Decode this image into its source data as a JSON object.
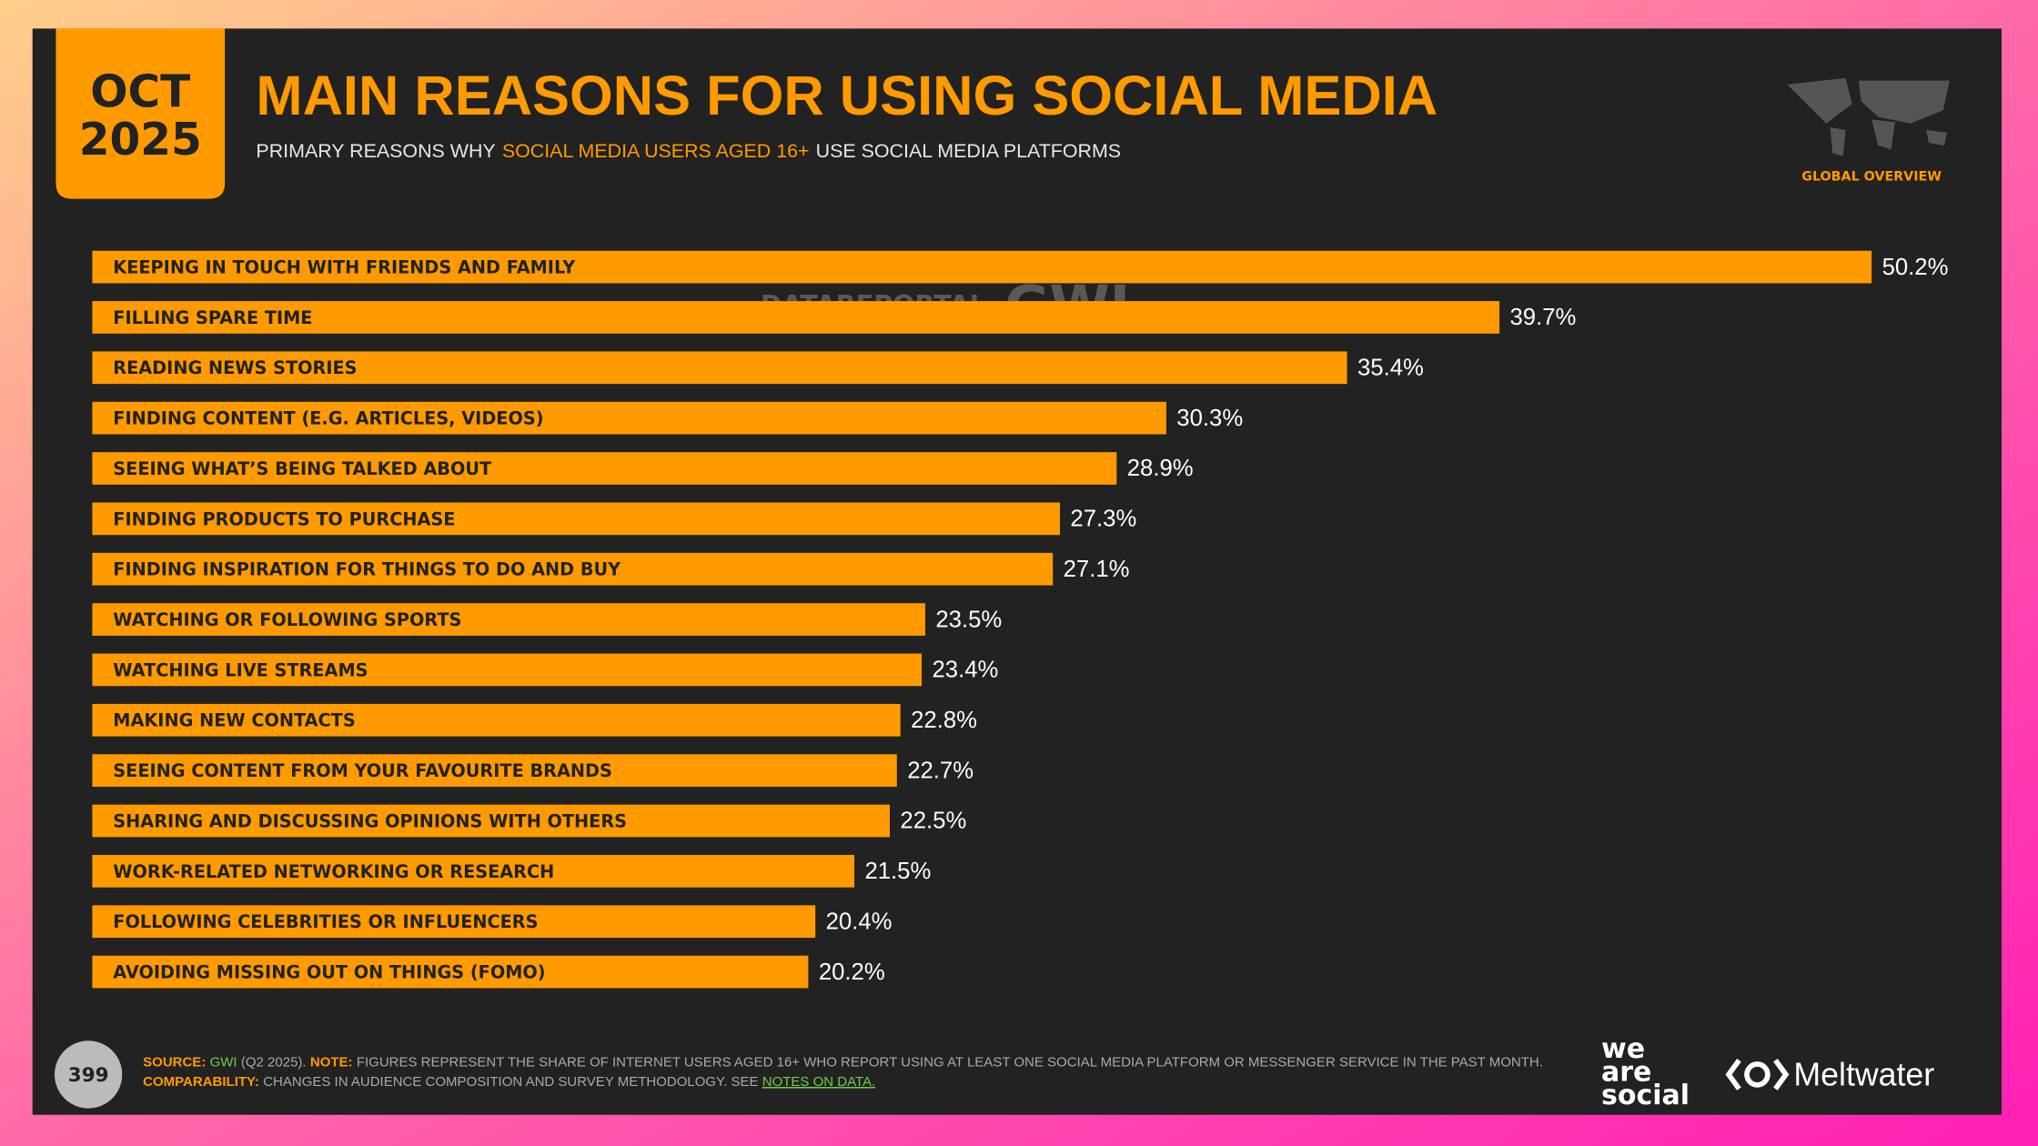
{
  "header": {
    "date_month": "OCT",
    "date_year": "2025",
    "title": "MAIN REASONS FOR USING SOCIAL MEDIA",
    "subtitle": [
      "PRIMARY REASONS WHY",
      "SOCIAL MEDIA USERS AGED 16+",
      "USE SOCIAL MEDIA PLATFORMS"
    ],
    "region": "GLOBAL OVERVIEW",
    "watermark": [
      "DATAREPORTAL",
      "GWI."
    ]
  },
  "chart_data": {
    "type": "bar",
    "orientation": "horizontal",
    "color": "#ff9a00",
    "categories": [
      "KEEPING IN TOUCH WITH FRIENDS AND FAMILY",
      "FILLING SPARE TIME",
      "READING NEWS STORIES",
      "FINDING CONTENT (E.G. ARTICLES, VIDEOS)",
      "SEEING WHAT’S BEING TALKED ABOUT",
      "FINDING PRODUCTS TO PURCHASE",
      "FINDING INSPIRATION FOR THINGS TO DO AND BUY",
      "WATCHING OR FOLLOWING SPORTS",
      "WATCHING LIVE STREAMS",
      "MAKING NEW CONTACTS",
      "SEEING CONTENT FROM YOUR FAVOURITE BRANDS",
      "SHARING AND DISCUSSING OPINIONS WITH OTHERS",
      "WORK-RELATED NETWORKING OR RESEARCH",
      "FOLLOWING CELEBRITIES OR INFLUENCERS",
      "AVOIDING MISSING OUT ON THINGS (FOMO)"
    ],
    "values": [
      50.2,
      39.7,
      35.4,
      30.3,
      28.9,
      27.3,
      27.1,
      23.5,
      23.4,
      22.8,
      22.7,
      22.5,
      21.5,
      20.4,
      20.2
    ],
    "value_labels": [
      "50.2%",
      "39.7%",
      "35.4%",
      "30.3%",
      "28.9%",
      "27.3%",
      "27.1%",
      "23.5%",
      "23.4%",
      "22.8%",
      "22.7%",
      "22.5%",
      "21.5%",
      "20.4%",
      "20.2%"
    ]
  },
  "footer": {
    "page": "399",
    "line1": [
      "SOURCE:",
      "GWI",
      "(Q2 2025).",
      "NOTE:",
      "FIGURES REPRESENT THE SHARE OF INTERNET USERS AGED 16+ WHO REPORT USING AT LEAST ONE SOCIAL MEDIA PLATFORM OR MESSENGER SERVICE IN THE PAST MONTH."
    ],
    "line2": [
      "COMPARABILITY:",
      "CHANGES IN AUDIENCE COMPOSITION AND SURVEY METHODOLOGY. SEE",
      "NOTES ON DATA."
    ],
    "logos": [
      "we",
      "are",
      "social",
      "Meltwater"
    ]
  }
}
